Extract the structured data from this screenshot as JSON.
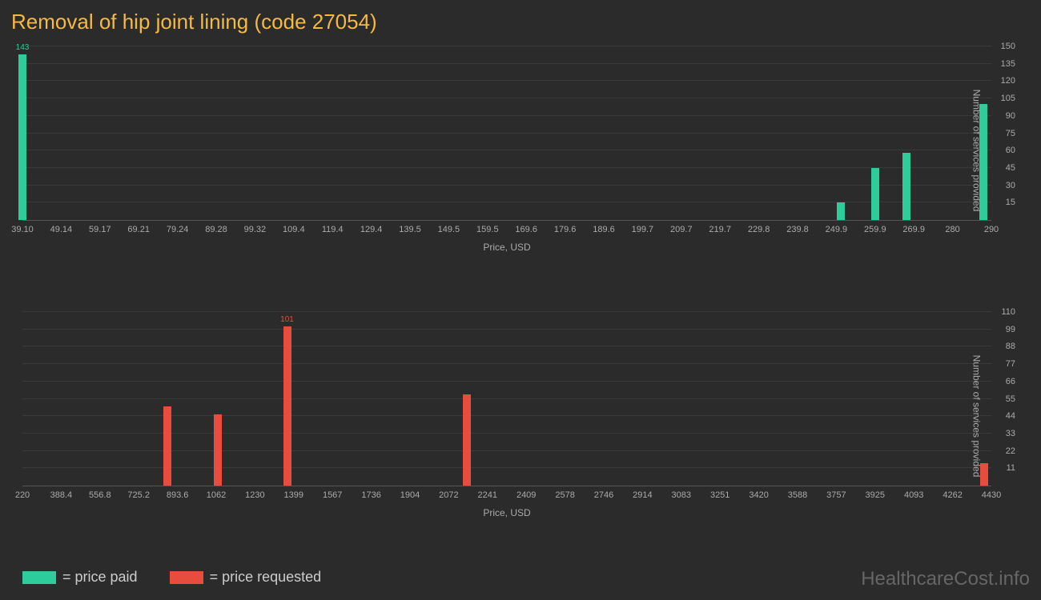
{
  "title": "Removal of hip joint lining (code 27054)",
  "background_color": "#2b2b2b",
  "grid_color": "#3a3a3a",
  "axis_color": "#555555",
  "text_color": "#aaaaaa",
  "title_color": "#f5b942",
  "watermark": "HealthcareCost.info",
  "watermark_color": "#666666",
  "legend": {
    "items": [
      {
        "color": "#2ecc9a",
        "label": "= price paid"
      },
      {
        "color": "#e74c3c",
        "label": "= price requested"
      }
    ]
  },
  "chart_top": {
    "type": "bar",
    "xlabel": "Price, USD",
    "ylabel": "Number of services provided",
    "xmin": 39.1,
    "xmax": 290,
    "ymin": 0,
    "ymax": 150,
    "yticks": [
      15,
      30,
      45,
      60,
      75,
      90,
      105,
      120,
      135,
      150
    ],
    "xticks": [
      "39.10",
      "49.14",
      "59.17",
      "69.21",
      "79.24",
      "89.28",
      "99.32",
      "109.4",
      "119.4",
      "129.4",
      "139.5",
      "149.5",
      "159.5",
      "169.6",
      "179.6",
      "189.6",
      "199.7",
      "209.7",
      "219.7",
      "229.8",
      "239.8",
      "249.9",
      "259.9",
      "269.9",
      "280",
      "290"
    ],
    "bar_color": "#2ecc9a",
    "bars": [
      {
        "x": 39.1,
        "y": 143,
        "label": "143"
      },
      {
        "x": 251,
        "y": 15
      },
      {
        "x": 260,
        "y": 45
      },
      {
        "x": 268,
        "y": 58
      },
      {
        "x": 288,
        "y": 100
      }
    ]
  },
  "chart_bottom": {
    "type": "bar",
    "xlabel": "Price, USD",
    "ylabel": "Number of services provided",
    "xmin": 220,
    "xmax": 4430,
    "ymin": 0,
    "ymax": 110,
    "yticks": [
      11,
      22,
      33,
      44,
      55,
      66,
      77,
      88,
      99,
      110
    ],
    "xticks": [
      "220",
      "388.4",
      "556.8",
      "725.2",
      "893.6",
      "1062",
      "1230",
      "1399",
      "1567",
      "1736",
      "1904",
      "2072",
      "2241",
      "2409",
      "2578",
      "2746",
      "2914",
      "3083",
      "3251",
      "3420",
      "3588",
      "3757",
      "3925",
      "4093",
      "4262",
      "4430"
    ],
    "bar_color": "#e74c3c",
    "bars": [
      {
        "x": 850,
        "y": 50
      },
      {
        "x": 1070,
        "y": 45
      },
      {
        "x": 1370,
        "y": 101,
        "label": "101"
      },
      {
        "x": 2150,
        "y": 58
      },
      {
        "x": 4400,
        "y": 14
      }
    ]
  }
}
